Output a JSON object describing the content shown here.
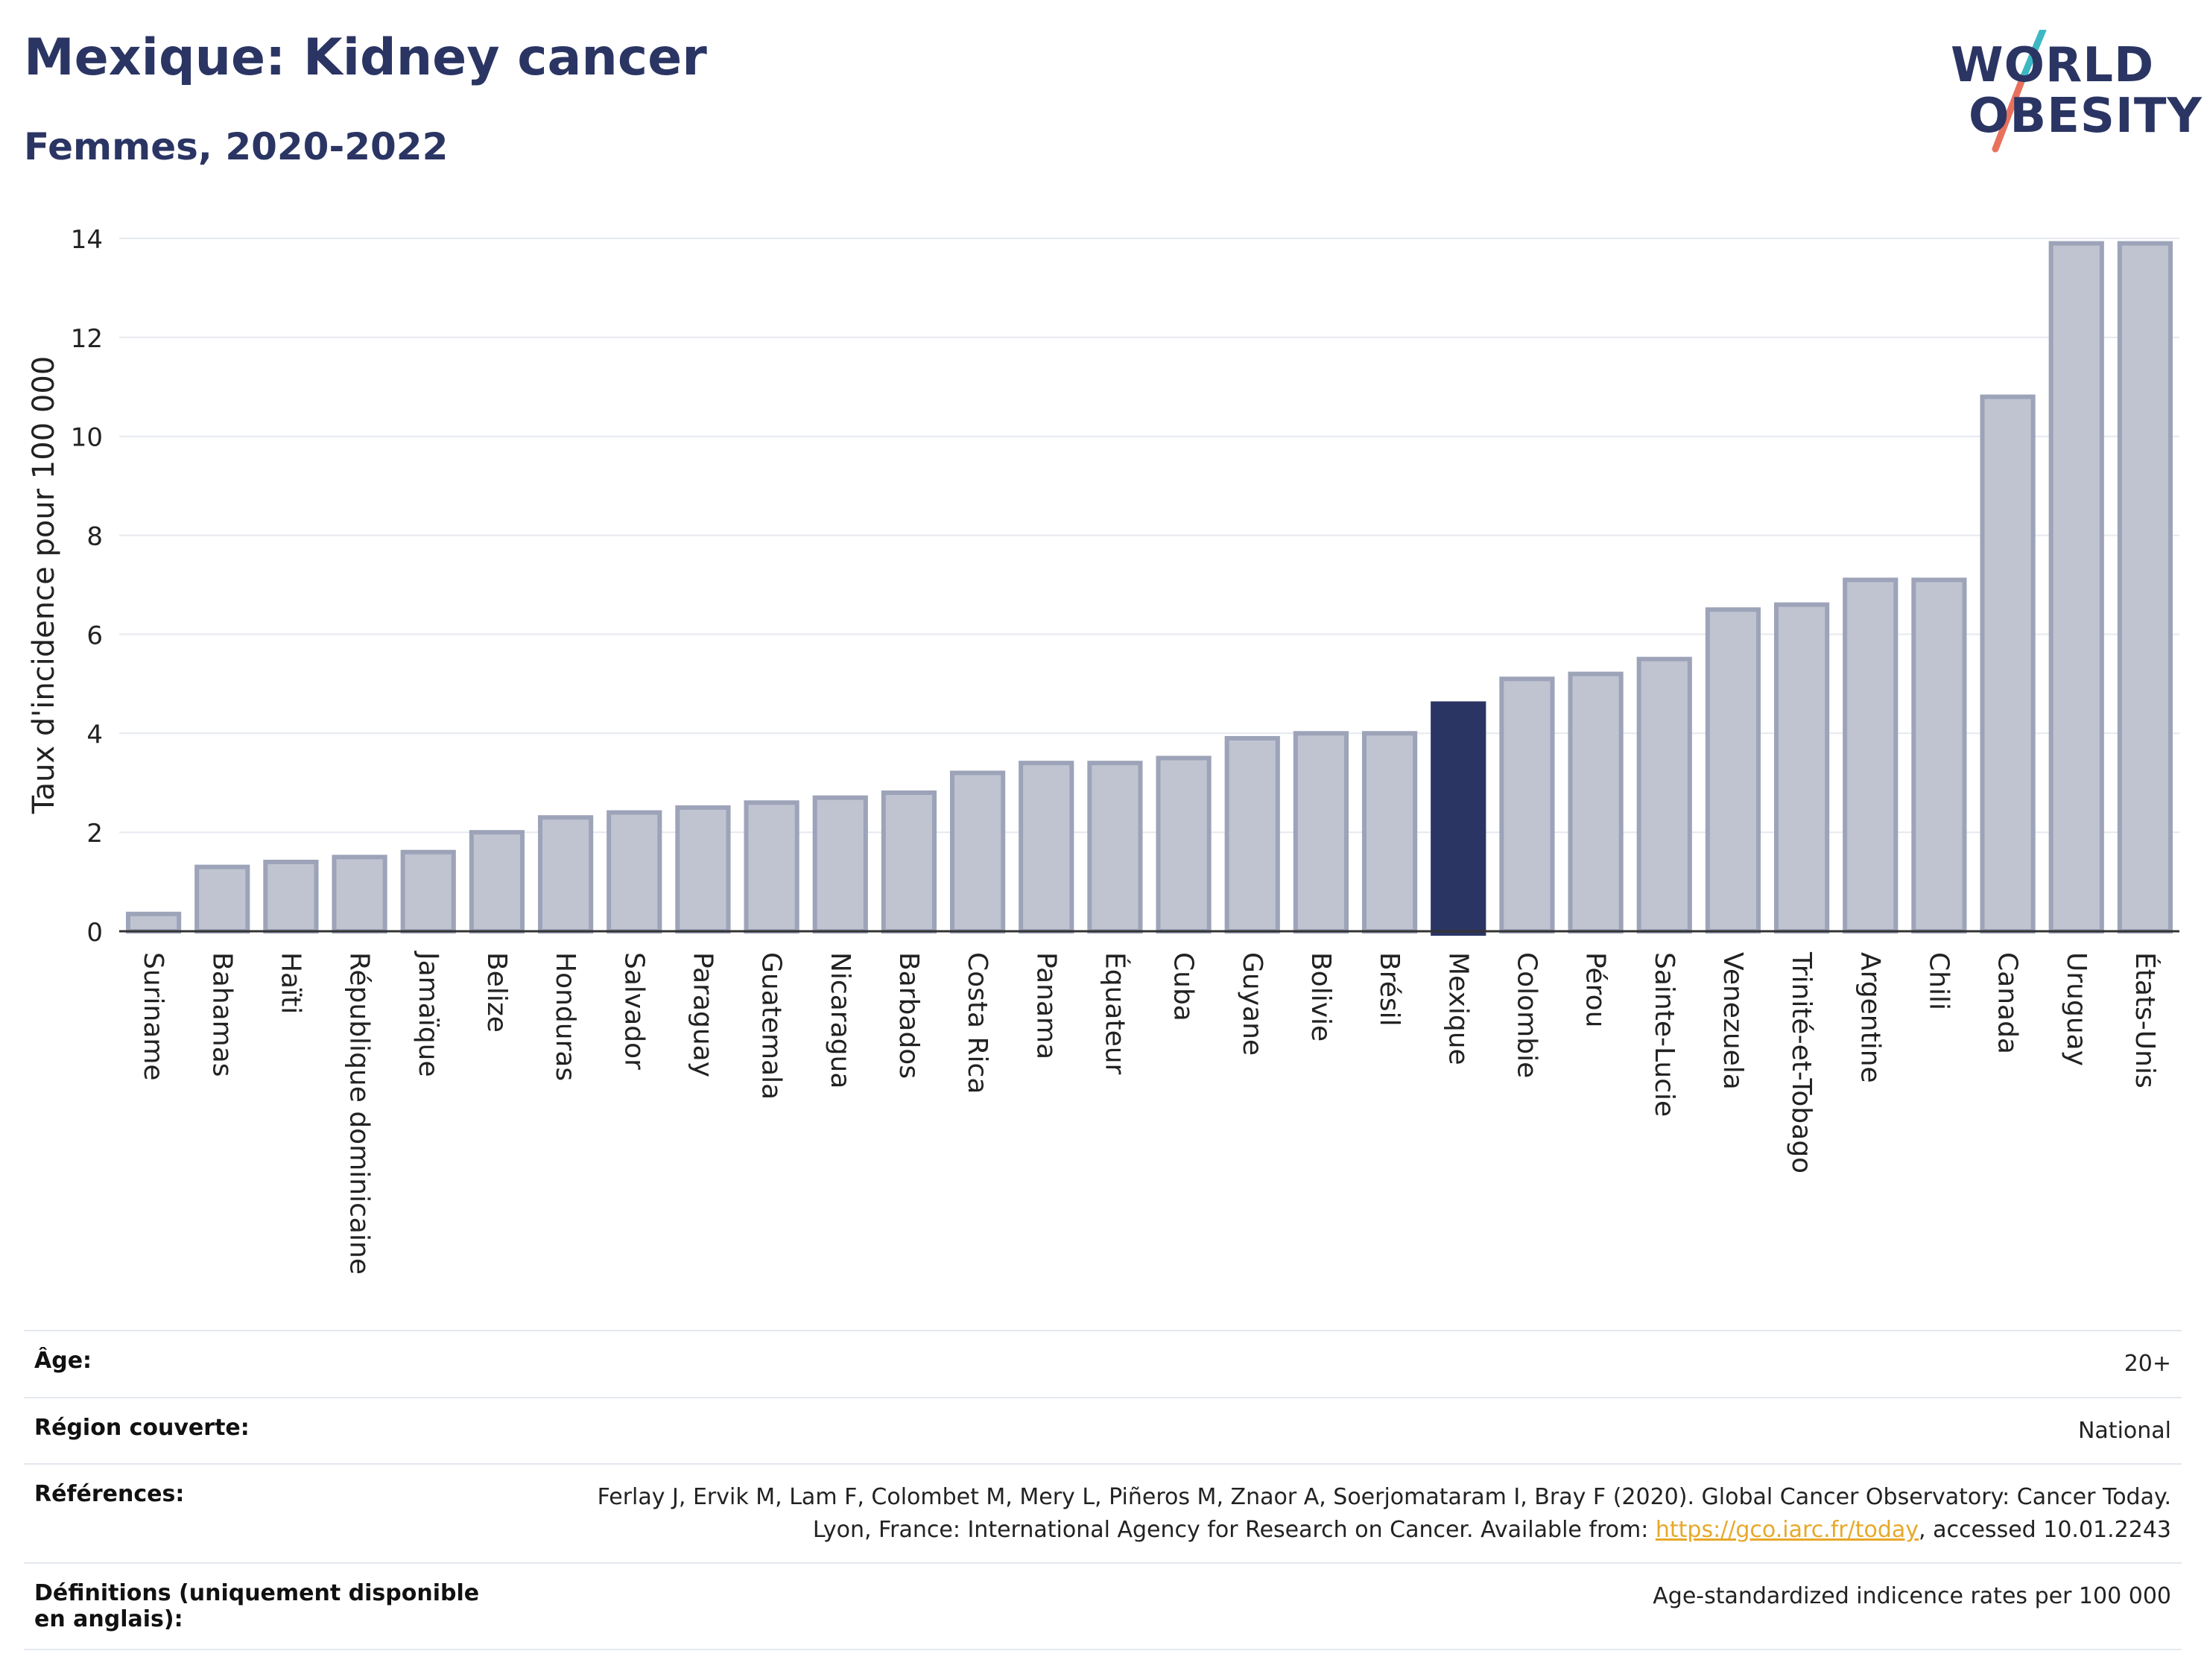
{
  "header": {
    "title": "Mexique: Kidney cancer",
    "subtitle": "Femmes, 2020-2022"
  },
  "logo": {
    "line1": "WORLD",
    "line2": "OBESITY",
    "colors": {
      "text": "#2b3563",
      "slash_top": "#3bb8c4",
      "slash_bottom": "#e8715e"
    }
  },
  "chart_data": {
    "type": "bar",
    "ylabel": "Taux d'incidence pour 100 000",
    "xlabel": "",
    "ylim": [
      0,
      14
    ],
    "yticks": [
      0,
      2,
      4,
      6,
      8,
      10,
      12,
      14
    ],
    "grid": true,
    "highlight": "Mexique",
    "colors": {
      "bar": "#c0c4d1",
      "bar_edge": "#9da3b8",
      "highlight": "#2b3563"
    },
    "categories": [
      "Suriname",
      "Bahamas",
      "Haïti",
      "République dominicaine",
      "Jamaïque",
      "Belize",
      "Honduras",
      "Salvador",
      "Paraguay",
      "Guatemala",
      "Nicaragua",
      "Barbados",
      "Costa Rica",
      "Panama",
      "Équateur",
      "Cuba",
      "Guyane",
      "Bolivie",
      "Brésil",
      "Mexique",
      "Colombie",
      "Pérou",
      "Sainte-Lucie",
      "Venezuela",
      "Trinité-et-Tobago",
      "Argentine",
      "Chili",
      "Canada",
      "Uruguay",
      "États-Unis"
    ],
    "values": [
      0.35,
      1.3,
      1.4,
      1.5,
      1.6,
      2.0,
      2.3,
      2.4,
      2.5,
      2.6,
      2.7,
      2.8,
      3.2,
      3.4,
      3.4,
      3.5,
      3.9,
      4.0,
      4.0,
      4.6,
      5.1,
      5.2,
      5.5,
      6.5,
      6.6,
      7.1,
      7.1,
      10.8,
      13.9,
      13.9
    ]
  },
  "meta": [
    {
      "key": "Âge:",
      "value": "20+"
    },
    {
      "key": "Région couverte:",
      "value": "National"
    },
    {
      "key": "Références:",
      "value": "Ferlay J, Ervik M, Lam F, Colombet M, Mery L, Piñeros M, Znaor A, Soerjomataram I, Bray F (2020). Global Cancer Observatory: Cancer Today. Lyon, France: International Agency for Research on Cancer. Available from: ",
      "link": "https://gco.iarc.fr/today",
      "suffix": ", accessed 10.01.2243"
    },
    {
      "key": "Définitions (uniquement disponible en anglais):",
      "value": "Age-standardized indicence rates per 100 000"
    }
  ]
}
